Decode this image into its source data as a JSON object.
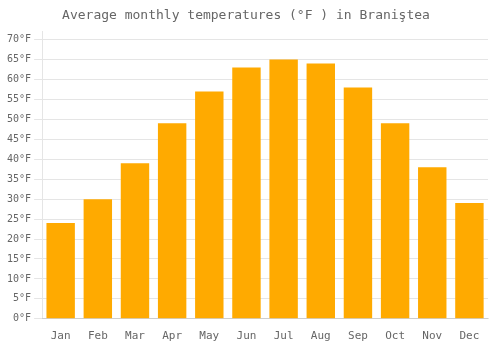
{
  "chart_data": {
    "type": "bar",
    "title": "Average monthly temperatures (°F ) in Braniştea",
    "categories": [
      "Jan",
      "Feb",
      "Mar",
      "Apr",
      "May",
      "Jun",
      "Jul",
      "Aug",
      "Sep",
      "Oct",
      "Nov",
      "Dec"
    ],
    "values": [
      24,
      30,
      39,
      49,
      57,
      63,
      65,
      64,
      58,
      49,
      38,
      29
    ],
    "color": "#FFAA00",
    "ylim": [
      0,
      72
    ],
    "yticks": [
      {
        "value": 0,
        "label": "0°F"
      },
      {
        "value": 5,
        "label": "5°F"
      },
      {
        "value": 10,
        "label": "10°F"
      },
      {
        "value": 15,
        "label": "15°F"
      },
      {
        "value": 20,
        "label": "20°F"
      },
      {
        "value": 25,
        "label": "25°F"
      },
      {
        "value": 30,
        "label": "30°F"
      },
      {
        "value": 35,
        "label": "35°F"
      },
      {
        "value": 40,
        "label": "40°F"
      },
      {
        "value": 45,
        "label": "45°F"
      },
      {
        "value": 50,
        "label": "50°F"
      },
      {
        "value": 55,
        "label": "55°F"
      },
      {
        "value": 60,
        "label": "60°F"
      },
      {
        "value": 65,
        "label": "65°F"
      },
      {
        "value": 70,
        "label": "70°F"
      }
    ],
    "grid": true
  }
}
